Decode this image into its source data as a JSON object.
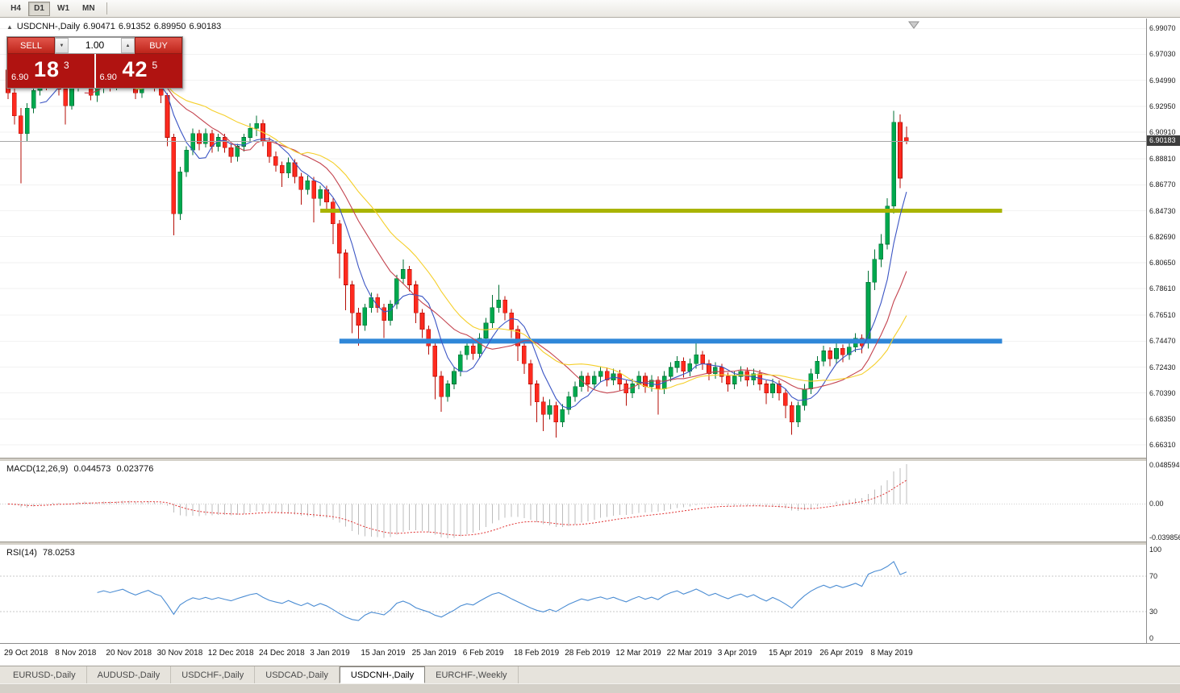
{
  "toolbar": {
    "periods": [
      "H4",
      "D1",
      "W1",
      "MN"
    ],
    "active_period": "D1"
  },
  "icons": {
    "collapse": "▲",
    "spinner_down": "▼",
    "spinner_up": "▲"
  },
  "chart": {
    "title_symbol": "USDCNH-,Daily",
    "ohlc": {
      "open": "6.90471",
      "high": "6.91352",
      "low": "6.89950",
      "close": "6.90183"
    },
    "current_price": "6.90183",
    "price_axis": [
      "6.99070",
      "6.97030",
      "6.94990",
      "6.92950",
      "6.90910",
      "6.88810",
      "6.86770",
      "6.84730",
      "6.82690",
      "6.80650",
      "6.78610",
      "6.76510",
      "6.74470",
      "6.72430",
      "6.70390",
      "6.68350",
      "6.66310"
    ],
    "trade_panel": {
      "sell_label": "SELL",
      "buy_label": "BUY",
      "volume": "1.00",
      "bid_prefix": "6.90",
      "bid_big": "18",
      "bid_sup": "3",
      "ask_prefix": "6.90",
      "ask_big": "42",
      "ask_sup": "5"
    }
  },
  "macd": {
    "title": "MACD(12,26,9)",
    "value_main": "0.044573",
    "value_signal": "0.023776",
    "axis_top": "0.048594",
    "axis_mid": "0.00",
    "axis_bottom": "-0.039856"
  },
  "rsi": {
    "title": "RSI(14)",
    "value": "78.0253",
    "axis": [
      "100",
      "70",
      "30",
      "0"
    ]
  },
  "tabs": {
    "items": [
      {
        "label": "EURUSD-,Daily",
        "active": false
      },
      {
        "label": "AUDUSD-,Daily",
        "active": false
      },
      {
        "label": "USDCHF-,Daily",
        "active": false
      },
      {
        "label": "USDCAD-,Daily",
        "active": false
      },
      {
        "label": "USDCNH-,Daily",
        "active": true
      },
      {
        "label": "EURCHF-,Weekly",
        "active": false
      }
    ]
  },
  "chart_data": {
    "type": "candlestick",
    "symbol": "USDCNH-",
    "timeframe": "Daily",
    "ylim": [
      6.653,
      6.9985
    ],
    "current_price": 6.90183,
    "x_labels": [
      "29 Oct 2018",
      "8 Nov 2018",
      "20 Nov 2018",
      "30 Nov 2018",
      "12 Dec 2018",
      "24 Dec 2018",
      "3 Jan 2019",
      "15 Jan 2019",
      "25 Jan 2019",
      "6 Feb 2019",
      "18 Feb 2019",
      "28 Feb 2019",
      "12 Mar 2019",
      "22 Mar 2019",
      "3 Apr 2019",
      "15 Apr 2019",
      "26 Apr 2019",
      "8 May 2019"
    ],
    "x_label_every": 8,
    "colors": {
      "up": "#00a84e",
      "up_border": "#007034",
      "down": "#fe2a1f",
      "down_border": "#b50d05",
      "grid": "#f2f2f2",
      "price_line": "#a8a8a8",
      "macd_hist": "#bdbdbd",
      "macd_signal": "#e03030",
      "rsi": "#4a8cd3",
      "rsi_levels": "#c9c9c9"
    },
    "moving_averages": [
      {
        "period": 6,
        "color": "#3b55c4"
      },
      {
        "period": 13,
        "color": "#c4444f"
      },
      {
        "period": 21,
        "color": "#f5cf2a"
      }
    ],
    "hlines": [
      {
        "price": 6.8473,
        "color": "#a9b400",
        "width": 5,
        "from_index": 49,
        "to_index": 156
      },
      {
        "price": 6.7447,
        "color": "#2f87d8",
        "width": 6,
        "from_index": 52,
        "to_index": 156
      }
    ],
    "macd_params": {
      "fast": 12,
      "slow": 26,
      "signal": 9
    },
    "rsi_params": {
      "period": 14,
      "levels": [
        70,
        30
      ]
    },
    "candles": [
      [
        6.958,
        6.963,
        6.935,
        6.94
      ],
      [
        6.94,
        6.945,
        6.915,
        6.922
      ],
      [
        6.922,
        6.928,
        6.869,
        6.908
      ],
      [
        6.908,
        6.932,
        6.902,
        6.928
      ],
      [
        6.928,
        6.946,
        6.924,
        6.942
      ],
      [
        6.942,
        6.958,
        6.938,
        6.952
      ],
      [
        6.952,
        6.956,
        6.942,
        6.947
      ],
      [
        6.947,
        6.965,
        6.944,
        6.956
      ],
      [
        6.956,
        6.96,
        6.938,
        6.943
      ],
      [
        6.943,
        6.948,
        6.915,
        6.93
      ],
      [
        6.93,
        6.947,
        6.927,
        6.944
      ],
      [
        6.944,
        6.968,
        6.941,
        6.958
      ],
      [
        6.958,
        6.962,
        6.946,
        6.95
      ],
      [
        6.95,
        6.953,
        6.934,
        6.938
      ],
      [
        6.938,
        6.948,
        6.933,
        6.945
      ],
      [
        6.945,
        6.955,
        6.94,
        6.952
      ],
      [
        6.952,
        6.956,
        6.941,
        6.946
      ],
      [
        6.946,
        6.955,
        6.942,
        6.952
      ],
      [
        6.952,
        6.966,
        6.948,
        6.958
      ],
      [
        6.958,
        6.961,
        6.944,
        6.948
      ],
      [
        6.948,
        6.952,
        6.935,
        6.94
      ],
      [
        6.94,
        6.95,
        6.936,
        6.948
      ],
      [
        6.948,
        6.958,
        6.944,
        6.955
      ],
      [
        6.955,
        6.958,
        6.941,
        6.945
      ],
      [
        6.945,
        6.949,
        6.932,
        6.938
      ],
      [
        6.938,
        6.94,
        6.898,
        6.905
      ],
      [
        6.905,
        6.908,
        6.828,
        6.845
      ],
      [
        6.845,
        6.882,
        6.84,
        6.878
      ],
      [
        6.878,
        6.898,
        6.874,
        6.895
      ],
      [
        6.895,
        6.912,
        6.891,
        6.908
      ],
      [
        6.908,
        6.911,
        6.895,
        6.9
      ],
      [
        6.9,
        6.912,
        6.897,
        6.908
      ],
      [
        6.908,
        6.911,
        6.893,
        6.898
      ],
      [
        6.898,
        6.908,
        6.894,
        6.905
      ],
      [
        6.905,
        6.908,
        6.893,
        6.897
      ],
      [
        6.897,
        6.9,
        6.885,
        6.89
      ],
      [
        6.89,
        6.9,
        6.886,
        6.898
      ],
      [
        6.898,
        6.908,
        6.894,
        6.905
      ],
      [
        6.905,
        6.916,
        6.901,
        6.912
      ],
      [
        6.912,
        6.922,
        6.906,
        6.916
      ],
      [
        6.916,
        6.919,
        6.898,
        6.902
      ],
      [
        6.902,
        6.905,
        6.885,
        6.89
      ],
      [
        6.89,
        6.894,
        6.878,
        6.883
      ],
      [
        6.883,
        6.886,
        6.866,
        6.877
      ],
      [
        6.877,
        6.889,
        6.873,
        6.885
      ],
      [
        6.885,
        6.888,
        6.869,
        6.874
      ],
      [
        6.874,
        6.877,
        6.852,
        6.864
      ],
      [
        6.864,
        6.875,
        6.86,
        6.871
      ],
      [
        6.871,
        6.874,
        6.838,
        6.857
      ],
      [
        6.857,
        6.867,
        6.851,
        6.864
      ],
      [
        6.864,
        6.867,
        6.847,
        6.854
      ],
      [
        6.854,
        6.857,
        6.821,
        6.837
      ],
      [
        6.837,
        6.84,
        6.794,
        6.814
      ],
      [
        6.814,
        6.817,
        6.769,
        6.789
      ],
      [
        6.789,
        6.792,
        6.751,
        6.767
      ],
      [
        6.767,
        6.771,
        6.741,
        6.757
      ],
      [
        6.757,
        6.774,
        6.753,
        6.771
      ],
      [
        6.771,
        6.783,
        6.767,
        6.779
      ],
      [
        6.779,
        6.782,
        6.767,
        6.771
      ],
      [
        6.771,
        6.774,
        6.747,
        6.761
      ],
      [
        6.761,
        6.777,
        6.757,
        6.774
      ],
      [
        6.774,
        6.797,
        6.77,
        6.794
      ],
      [
        6.794,
        6.809,
        6.79,
        6.801
      ],
      [
        6.801,
        6.804,
        6.784,
        6.789
      ],
      [
        6.789,
        6.792,
        6.759,
        6.767
      ],
      [
        6.767,
        6.77,
        6.747,
        6.754
      ],
      [
        6.754,
        6.757,
        6.734,
        6.741
      ],
      [
        6.741,
        6.744,
        6.699,
        6.717
      ],
      [
        6.717,
        6.721,
        6.689,
        6.701
      ],
      [
        6.701,
        6.714,
        6.697,
        6.711
      ],
      [
        6.711,
        6.724,
        6.707,
        6.721
      ],
      [
        6.721,
        6.737,
        6.717,
        6.734
      ],
      [
        6.734,
        6.744,
        6.73,
        6.741
      ],
      [
        6.741,
        6.744,
        6.73,
        6.735
      ],
      [
        6.735,
        6.751,
        6.731,
        6.747
      ],
      [
        6.747,
        6.763,
        6.743,
        6.759
      ],
      [
        6.759,
        6.781,
        6.755,
        6.771
      ],
      [
        6.771,
        6.789,
        6.767,
        6.777
      ],
      [
        6.777,
        6.78,
        6.761,
        6.767
      ],
      [
        6.767,
        6.77,
        6.747,
        6.754
      ],
      [
        6.754,
        6.757,
        6.729,
        6.741
      ],
      [
        6.741,
        6.744,
        6.719,
        6.727
      ],
      [
        6.727,
        6.73,
        6.694,
        6.711
      ],
      [
        6.711,
        6.714,
        6.681,
        6.697
      ],
      [
        6.697,
        6.701,
        6.674,
        6.687
      ],
      [
        6.687,
        6.699,
        6.683,
        6.694
      ],
      [
        6.694,
        6.697,
        6.669,
        6.681
      ],
      [
        6.681,
        6.695,
        6.677,
        6.691
      ],
      [
        6.691,
        6.705,
        6.687,
        6.701
      ],
      [
        6.701,
        6.713,
        6.697,
        6.709
      ],
      [
        6.709,
        6.721,
        6.705,
        6.717
      ],
      [
        6.717,
        6.72,
        6.705,
        6.711
      ],
      [
        6.711,
        6.721,
        6.707,
        6.717
      ],
      [
        6.717,
        6.725,
        6.713,
        6.721
      ],
      [
        6.721,
        6.724,
        6.709,
        6.714
      ],
      [
        6.714,
        6.723,
        6.71,
        6.719
      ],
      [
        6.719,
        6.722,
        6.706,
        6.711
      ],
      [
        6.711,
        6.714,
        6.694,
        6.704
      ],
      [
        6.704,
        6.715,
        6.7,
        6.711
      ],
      [
        6.711,
        6.721,
        6.707,
        6.717
      ],
      [
        6.717,
        6.72,
        6.704,
        6.709
      ],
      [
        6.709,
        6.718,
        6.705,
        6.714
      ],
      [
        6.714,
        6.717,
        6.687,
        6.707
      ],
      [
        6.707,
        6.721,
        6.703,
        6.717
      ],
      [
        6.717,
        6.728,
        6.713,
        6.724
      ],
      [
        6.724,
        6.733,
        6.72,
        6.729
      ],
      [
        6.729,
        6.732,
        6.716,
        6.721
      ],
      [
        6.721,
        6.731,
        6.717,
        6.727
      ],
      [
        6.727,
        6.744,
        6.723,
        6.734
      ],
      [
        6.734,
        6.737,
        6.722,
        6.727
      ],
      [
        6.727,
        6.73,
        6.714,
        6.719
      ],
      [
        6.719,
        6.728,
        6.715,
        6.724
      ],
      [
        6.724,
        6.727,
        6.712,
        6.717
      ],
      [
        6.717,
        6.72,
        6.705,
        6.711
      ],
      [
        6.711,
        6.721,
        6.707,
        6.717
      ],
      [
        6.717,
        6.725,
        6.713,
        6.721
      ],
      [
        6.721,
        6.724,
        6.709,
        6.714
      ],
      [
        6.714,
        6.723,
        6.71,
        6.719
      ],
      [
        6.719,
        6.722,
        6.706,
        6.711
      ],
      [
        6.711,
        6.714,
        6.695,
        6.704
      ],
      [
        6.704,
        6.715,
        6.7,
        6.711
      ],
      [
        6.711,
        6.714,
        6.698,
        6.704
      ],
      [
        6.704,
        6.707,
        6.684,
        6.694
      ],
      [
        6.694,
        6.697,
        6.671,
        6.681
      ],
      [
        6.681,
        6.697,
        6.677,
        6.694
      ],
      [
        6.694,
        6.711,
        6.69,
        6.707
      ],
      [
        6.707,
        6.723,
        6.703,
        6.719
      ],
      [
        6.719,
        6.733,
        6.715,
        6.729
      ],
      [
        6.729,
        6.741,
        6.725,
        6.737
      ],
      [
        6.737,
        6.74,
        6.725,
        6.731
      ],
      [
        6.731,
        6.743,
        6.727,
        6.739
      ],
      [
        6.739,
        6.742,
        6.728,
        6.734
      ],
      [
        6.734,
        6.743,
        6.73,
        6.74
      ],
      [
        6.74,
        6.751,
        6.736,
        6.747
      ],
      [
        6.747,
        6.75,
        6.735,
        6.741
      ],
      [
        6.744,
        6.8,
        6.739,
        6.791
      ],
      [
        6.791,
        6.817,
        6.785,
        6.809
      ],
      [
        6.809,
        6.829,
        6.803,
        6.821
      ],
      [
        6.821,
        6.857,
        6.817,
        6.851
      ],
      [
        6.851,
        6.926,
        6.845,
        6.917
      ],
      [
        6.917,
        6.923,
        6.865,
        6.873
      ],
      [
        6.90471,
        6.91352,
        6.8995,
        6.90183
      ]
    ]
  }
}
